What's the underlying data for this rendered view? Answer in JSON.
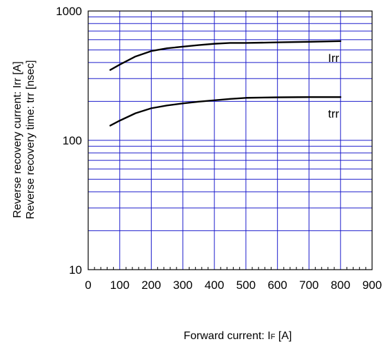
{
  "chart_data": {
    "type": "line",
    "title": "",
    "xlabel": {
      "main": "Forward current: I",
      "sub": "F",
      "unit": " [A]"
    },
    "ylabel_lines": [
      "Reverse recovery current: Irr [A]",
      "Reverse recovery time: trr [nsec]"
    ],
    "xlim": [
      0,
      900
    ],
    "ylim": [
      10,
      1000
    ],
    "yscale": "log",
    "x_ticks": [
      0,
      100,
      200,
      300,
      400,
      500,
      600,
      700,
      800,
      900
    ],
    "y_ticks": [
      10,
      100,
      1000
    ],
    "grid": true,
    "colors": {
      "grid": "#1a1acc",
      "frame": "#000000",
      "series": "#000000"
    },
    "series": [
      {
        "name": "Irr",
        "x": [
          70,
          100,
          150,
          200,
          250,
          300,
          350,
          400,
          450,
          500,
          600,
          700,
          800
        ],
        "y": [
          350,
          385,
          445,
          490,
          515,
          530,
          545,
          558,
          566,
          566,
          572,
          578,
          585
        ]
      },
      {
        "name": "trr",
        "x": [
          70,
          100,
          150,
          200,
          250,
          300,
          350,
          400,
          450,
          500,
          600,
          700,
          800
        ],
        "y": [
          130,
          142,
          162,
          177,
          186,
          193,
          199,
          204,
          209,
          213,
          215,
          216,
          216
        ]
      }
    ]
  }
}
